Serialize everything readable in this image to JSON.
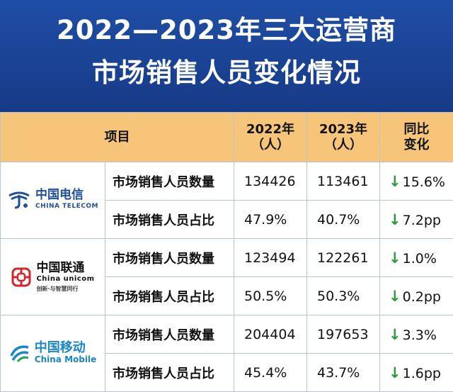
{
  "title_line1": "2022—2023年三大运营商",
  "title_line2": "市场销售人员变化情况",
  "table": {
    "headers": {
      "item": "项目",
      "y2022_line1": "2022年",
      "y2022_line2": "（人）",
      "y2023_line1": "2023年",
      "y2023_line2": "（人）",
      "yoy_line1": "同比",
      "yoy_line2": "变化"
    },
    "arrow_color": "#2c9a3f",
    "header_color": "#f7c57a",
    "operators": [
      {
        "logo_cn": "中国电信",
        "logo_en": "CHINA TELECOM",
        "rows": [
          {
            "metric": "市场销售人员数量",
            "y2022": "134426",
            "y2023": "113461",
            "change": "15.6%",
            "direction": "down"
          },
          {
            "metric": "市场销售人员占比",
            "y2022": "47.9%",
            "y2023": "40.7%",
            "change": "7.2pp",
            "direction": "down"
          }
        ]
      },
      {
        "logo_cn": "中国联通",
        "logo_en": "China unicom",
        "logo_slogan": "创新·与智慧同行",
        "rows": [
          {
            "metric": "市场销售人员数量",
            "y2022": "123494",
            "y2023": "122261",
            "change": "1.0%",
            "direction": "down"
          },
          {
            "metric": "市场销售人员占比",
            "y2022": "50.5%",
            "y2023": "50.3%",
            "change": "0.2pp",
            "direction": "down"
          }
        ]
      },
      {
        "logo_cn": "中国移动",
        "logo_en": "China Mobile",
        "rows": [
          {
            "metric": "市场销售人员数量",
            "y2022": "204404",
            "y2023": "197653",
            "change": "3.3%",
            "direction": "down"
          },
          {
            "metric": "市场销售人员占比",
            "y2022": "45.4%",
            "y2023": "43.7%",
            "change": "1.6pp",
            "direction": "down"
          }
        ]
      }
    ]
  }
}
